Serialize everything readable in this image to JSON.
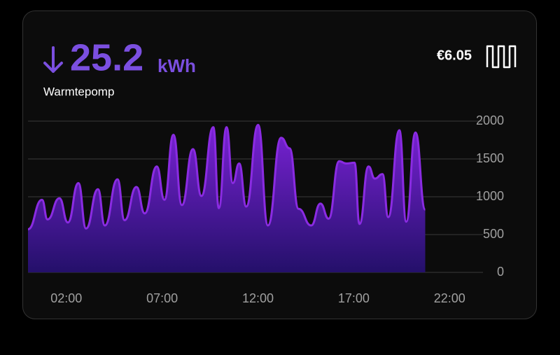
{
  "header": {
    "value": "25.2",
    "unit": "kWh",
    "name": "Warmtepomp",
    "cost": "€6.05"
  },
  "chart_data": {
    "type": "area",
    "color": "#8a2be2",
    "x": [
      0,
      0.73,
      1.02,
      1.64,
      2.08,
      2.63,
      3.03,
      3.65,
      4.01,
      4.67,
      5.04,
      5.66,
      6.09,
      6.72,
      7.12,
      7.59,
      8.03,
      8.61,
      9.05,
      9.67,
      9.96,
      10.36,
      10.69,
      11.02,
      11.39,
      12.01,
      12.52,
      13.21,
      13.65,
      14.12,
      14.78,
      15.26,
      15.69,
      16.24,
      16.61,
      17.04,
      17.3,
      17.77,
      18.1,
      18.5,
      18.8,
      19.38,
      19.74,
      20.22,
      20.73
    ],
    "values": [
      570,
      960,
      700,
      980,
      660,
      1180,
      580,
      1100,
      620,
      1230,
      690,
      1130,
      780,
      1400,
      960,
      1820,
      890,
      1630,
      1010,
      1920,
      850,
      1920,
      1180,
      1440,
      870,
      1950,
      620,
      1780,
      1640,
      840,
      620,
      910,
      710,
      1470,
      1440,
      1450,
      640,
      1400,
      1240,
      1300,
      730,
      1880,
      670,
      1850,
      830
    ],
    "xlim": [
      0,
      24
    ],
    "xticks": [
      {
        "value": 2,
        "label": "02:00"
      },
      {
        "value": 7,
        "label": "07:00"
      },
      {
        "value": 12,
        "label": "12:00"
      },
      {
        "value": 17,
        "label": "17:00"
      },
      {
        "value": 22,
        "label": "22:00"
      }
    ],
    "ylim": [
      0,
      2000
    ],
    "yticks": [
      0,
      500,
      1000,
      1500,
      2000
    ],
    "grid": true
  }
}
